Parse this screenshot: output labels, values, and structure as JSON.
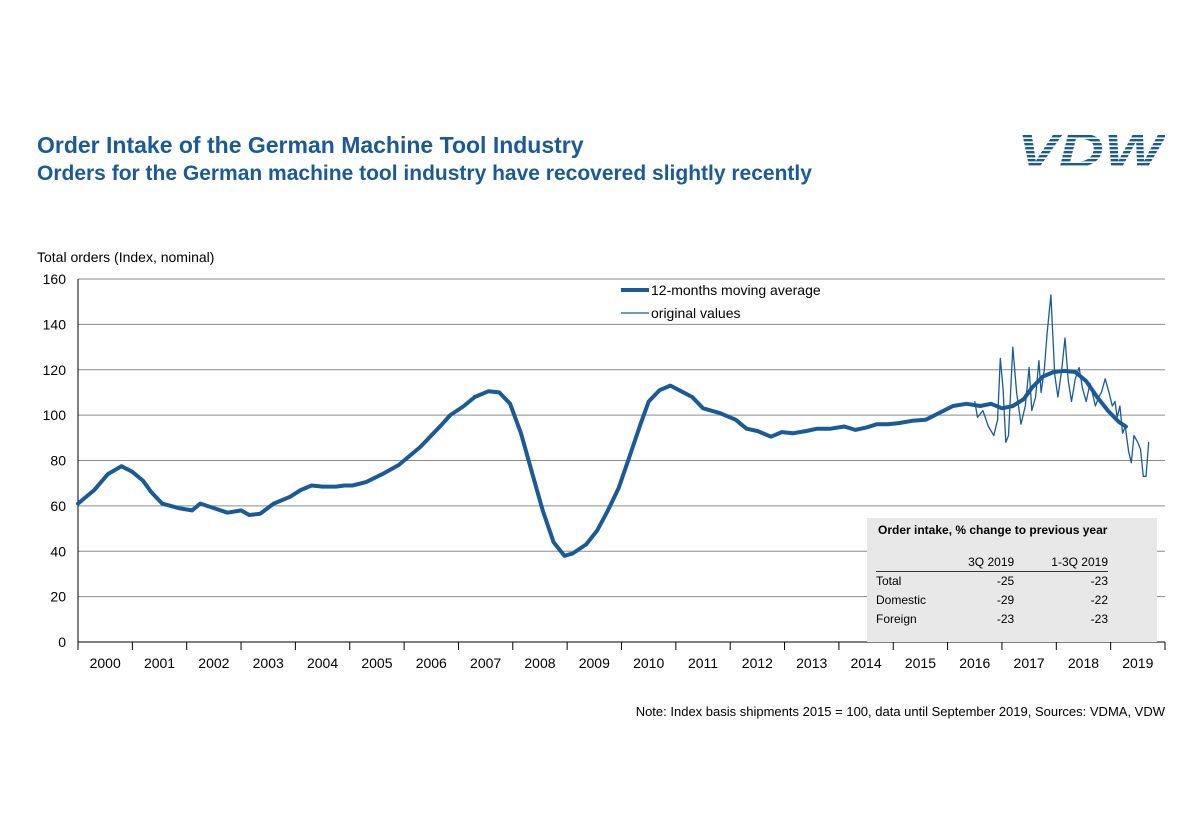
{
  "header": {
    "title": "Order Intake of the German Machine Tool Industry",
    "subtitle": "Orders for the German machine tool industry have recovered slightly recently",
    "logo_text": "VDW"
  },
  "colors": {
    "brand": "#1a5a96",
    "line": "#1a5a96",
    "grid": "#8c8c8c",
    "inset_bg": "#e8e8e8"
  },
  "footer": {
    "note": "Note: Index basis shipments  2015 = 100, data until September 2019, Sources: VDMA, VDW"
  },
  "inset": {
    "title": "Order intake, % change to previous year",
    "columns": [
      "3Q 2019",
      "1-3Q 2019"
    ],
    "rows": [
      {
        "label": "Total",
        "q3": "-25",
        "ytd": "-23"
      },
      {
        "label": "Domestic",
        "q3": "-29",
        "ytd": "-22"
      },
      {
        "label": "Foreign",
        "q3": "-23",
        "ytd": "-23"
      }
    ]
  },
  "chart_data": {
    "type": "line",
    "ylabel": "Total orders (Index, nominal)",
    "ylim": [
      0,
      160
    ],
    "yticks": [
      0,
      20,
      40,
      60,
      80,
      100,
      120,
      140,
      160
    ],
    "categories": [
      "2000",
      "2001",
      "2002",
      "2003",
      "2004",
      "2005",
      "2006",
      "2007",
      "2008",
      "2009",
      "2010",
      "2011",
      "2012",
      "2013",
      "2014",
      "2015",
      "2016",
      "2017",
      "2018",
      "2019"
    ],
    "legend_position": "top-center",
    "series": [
      {
        "name": "12-months moving average",
        "style": "thick",
        "points": [
          [
            2000.0,
            61
          ],
          [
            2000.3,
            67
          ],
          [
            2000.55,
            74
          ],
          [
            2000.8,
            77.5
          ],
          [
            2001.0,
            75
          ],
          [
            2001.2,
            71
          ],
          [
            2001.35,
            66
          ],
          [
            2001.55,
            61
          ],
          [
            2001.85,
            59
          ],
          [
            2002.1,
            58
          ],
          [
            2002.25,
            61
          ],
          [
            2002.5,
            59
          ],
          [
            2002.75,
            57
          ],
          [
            2003.0,
            58
          ],
          [
            2003.15,
            56
          ],
          [
            2003.35,
            56.5
          ],
          [
            2003.6,
            61
          ],
          [
            2003.9,
            64
          ],
          [
            2004.1,
            67
          ],
          [
            2004.3,
            69
          ],
          [
            2004.5,
            68.5
          ],
          [
            2004.75,
            68.5
          ],
          [
            2004.9,
            69
          ],
          [
            2005.05,
            69
          ],
          [
            2005.3,
            70.5
          ],
          [
            2005.6,
            74
          ],
          [
            2005.9,
            78
          ],
          [
            2006.1,
            82
          ],
          [
            2006.3,
            86
          ],
          [
            2006.5,
            91
          ],
          [
            2006.7,
            96
          ],
          [
            2006.85,
            100
          ],
          [
            2007.1,
            104
          ],
          [
            2007.3,
            108
          ],
          [
            2007.55,
            110.5
          ],
          [
            2007.75,
            110
          ],
          [
            2007.95,
            105
          ],
          [
            2008.15,
            92
          ],
          [
            2008.35,
            75
          ],
          [
            2008.55,
            58
          ],
          [
            2008.75,
            44
          ],
          [
            2008.95,
            38
          ],
          [
            2009.1,
            39
          ],
          [
            2009.35,
            43
          ],
          [
            2009.55,
            49
          ],
          [
            2009.75,
            58
          ],
          [
            2009.95,
            68
          ],
          [
            2010.15,
            82
          ],
          [
            2010.35,
            96
          ],
          [
            2010.5,
            106
          ],
          [
            2010.7,
            111
          ],
          [
            2010.9,
            113
          ],
          [
            2011.1,
            110.5
          ],
          [
            2011.3,
            108
          ],
          [
            2011.5,
            103
          ],
          [
            2011.8,
            101
          ],
          [
            2012.1,
            98
          ],
          [
            2012.3,
            94
          ],
          [
            2012.5,
            93
          ],
          [
            2012.75,
            90.5
          ],
          [
            2012.95,
            92.5
          ],
          [
            2013.15,
            92
          ],
          [
            2013.4,
            93
          ],
          [
            2013.6,
            94
          ],
          [
            2013.85,
            94
          ],
          [
            2014.1,
            95
          ],
          [
            2014.3,
            93.5
          ],
          [
            2014.5,
            94.5
          ],
          [
            2014.7,
            96
          ],
          [
            2014.9,
            96
          ],
          [
            2015.1,
            96.5
          ],
          [
            2015.35,
            97.5
          ],
          [
            2015.6,
            98
          ],
          [
            2015.85,
            101
          ],
          [
            2016.1,
            104
          ],
          [
            2016.35,
            105
          ],
          [
            2016.6,
            104
          ],
          [
            2016.8,
            105
          ],
          [
            2017.0,
            103
          ],
          [
            2017.2,
            104
          ],
          [
            2017.4,
            107
          ],
          [
            2017.55,
            112
          ],
          [
            2017.75,
            117
          ],
          [
            2017.95,
            119
          ],
          [
            2018.15,
            119.5
          ],
          [
            2018.35,
            119
          ],
          [
            2018.55,
            115
          ],
          [
            2018.75,
            108
          ],
          [
            2018.95,
            102
          ],
          [
            2019.15,
            97
          ],
          [
            2019.28,
            95
          ]
        ]
      },
      {
        "name": "original values",
        "style": "thin",
        "points": [
          [
            2016.5,
            106
          ],
          [
            2016.55,
            99
          ],
          [
            2016.65,
            102
          ],
          [
            2016.75,
            95
          ],
          [
            2016.85,
            91
          ],
          [
            2016.92,
            98
          ],
          [
            2016.97,
            125
          ],
          [
            2017.02,
            112
          ],
          [
            2017.07,
            88
          ],
          [
            2017.12,
            91
          ],
          [
            2017.2,
            130
          ],
          [
            2017.27,
            110
          ],
          [
            2017.35,
            96
          ],
          [
            2017.43,
            104
          ],
          [
            2017.5,
            121
          ],
          [
            2017.55,
            102
          ],
          [
            2017.62,
            108
          ],
          [
            2017.68,
            124
          ],
          [
            2017.72,
            110
          ],
          [
            2017.78,
            120
          ],
          [
            2017.83,
            136
          ],
          [
            2017.9,
            153
          ],
          [
            2017.97,
            118
          ],
          [
            2018.03,
            108
          ],
          [
            2018.1,
            120
          ],
          [
            2018.16,
            134
          ],
          [
            2018.22,
            115
          ],
          [
            2018.28,
            106
          ],
          [
            2018.35,
            116
          ],
          [
            2018.42,
            121
          ],
          [
            2018.48,
            112
          ],
          [
            2018.55,
            106
          ],
          [
            2018.62,
            114
          ],
          [
            2018.68,
            108
          ],
          [
            2018.72,
            104
          ],
          [
            2018.78,
            108
          ],
          [
            2018.83,
            110
          ],
          [
            2018.9,
            116
          ],
          [
            2018.97,
            110
          ],
          [
            2019.03,
            104
          ],
          [
            2019.08,
            106
          ],
          [
            2019.12,
            99
          ],
          [
            2019.17,
            104
          ],
          [
            2019.22,
            92
          ],
          [
            2019.27,
            95
          ],
          [
            2019.33,
            84
          ],
          [
            2019.38,
            79
          ],
          [
            2019.43,
            91
          ],
          [
            2019.5,
            88
          ],
          [
            2019.55,
            85
          ],
          [
            2019.6,
            73
          ],
          [
            2019.65,
            73
          ],
          [
            2019.7,
            88
          ]
        ]
      }
    ]
  }
}
